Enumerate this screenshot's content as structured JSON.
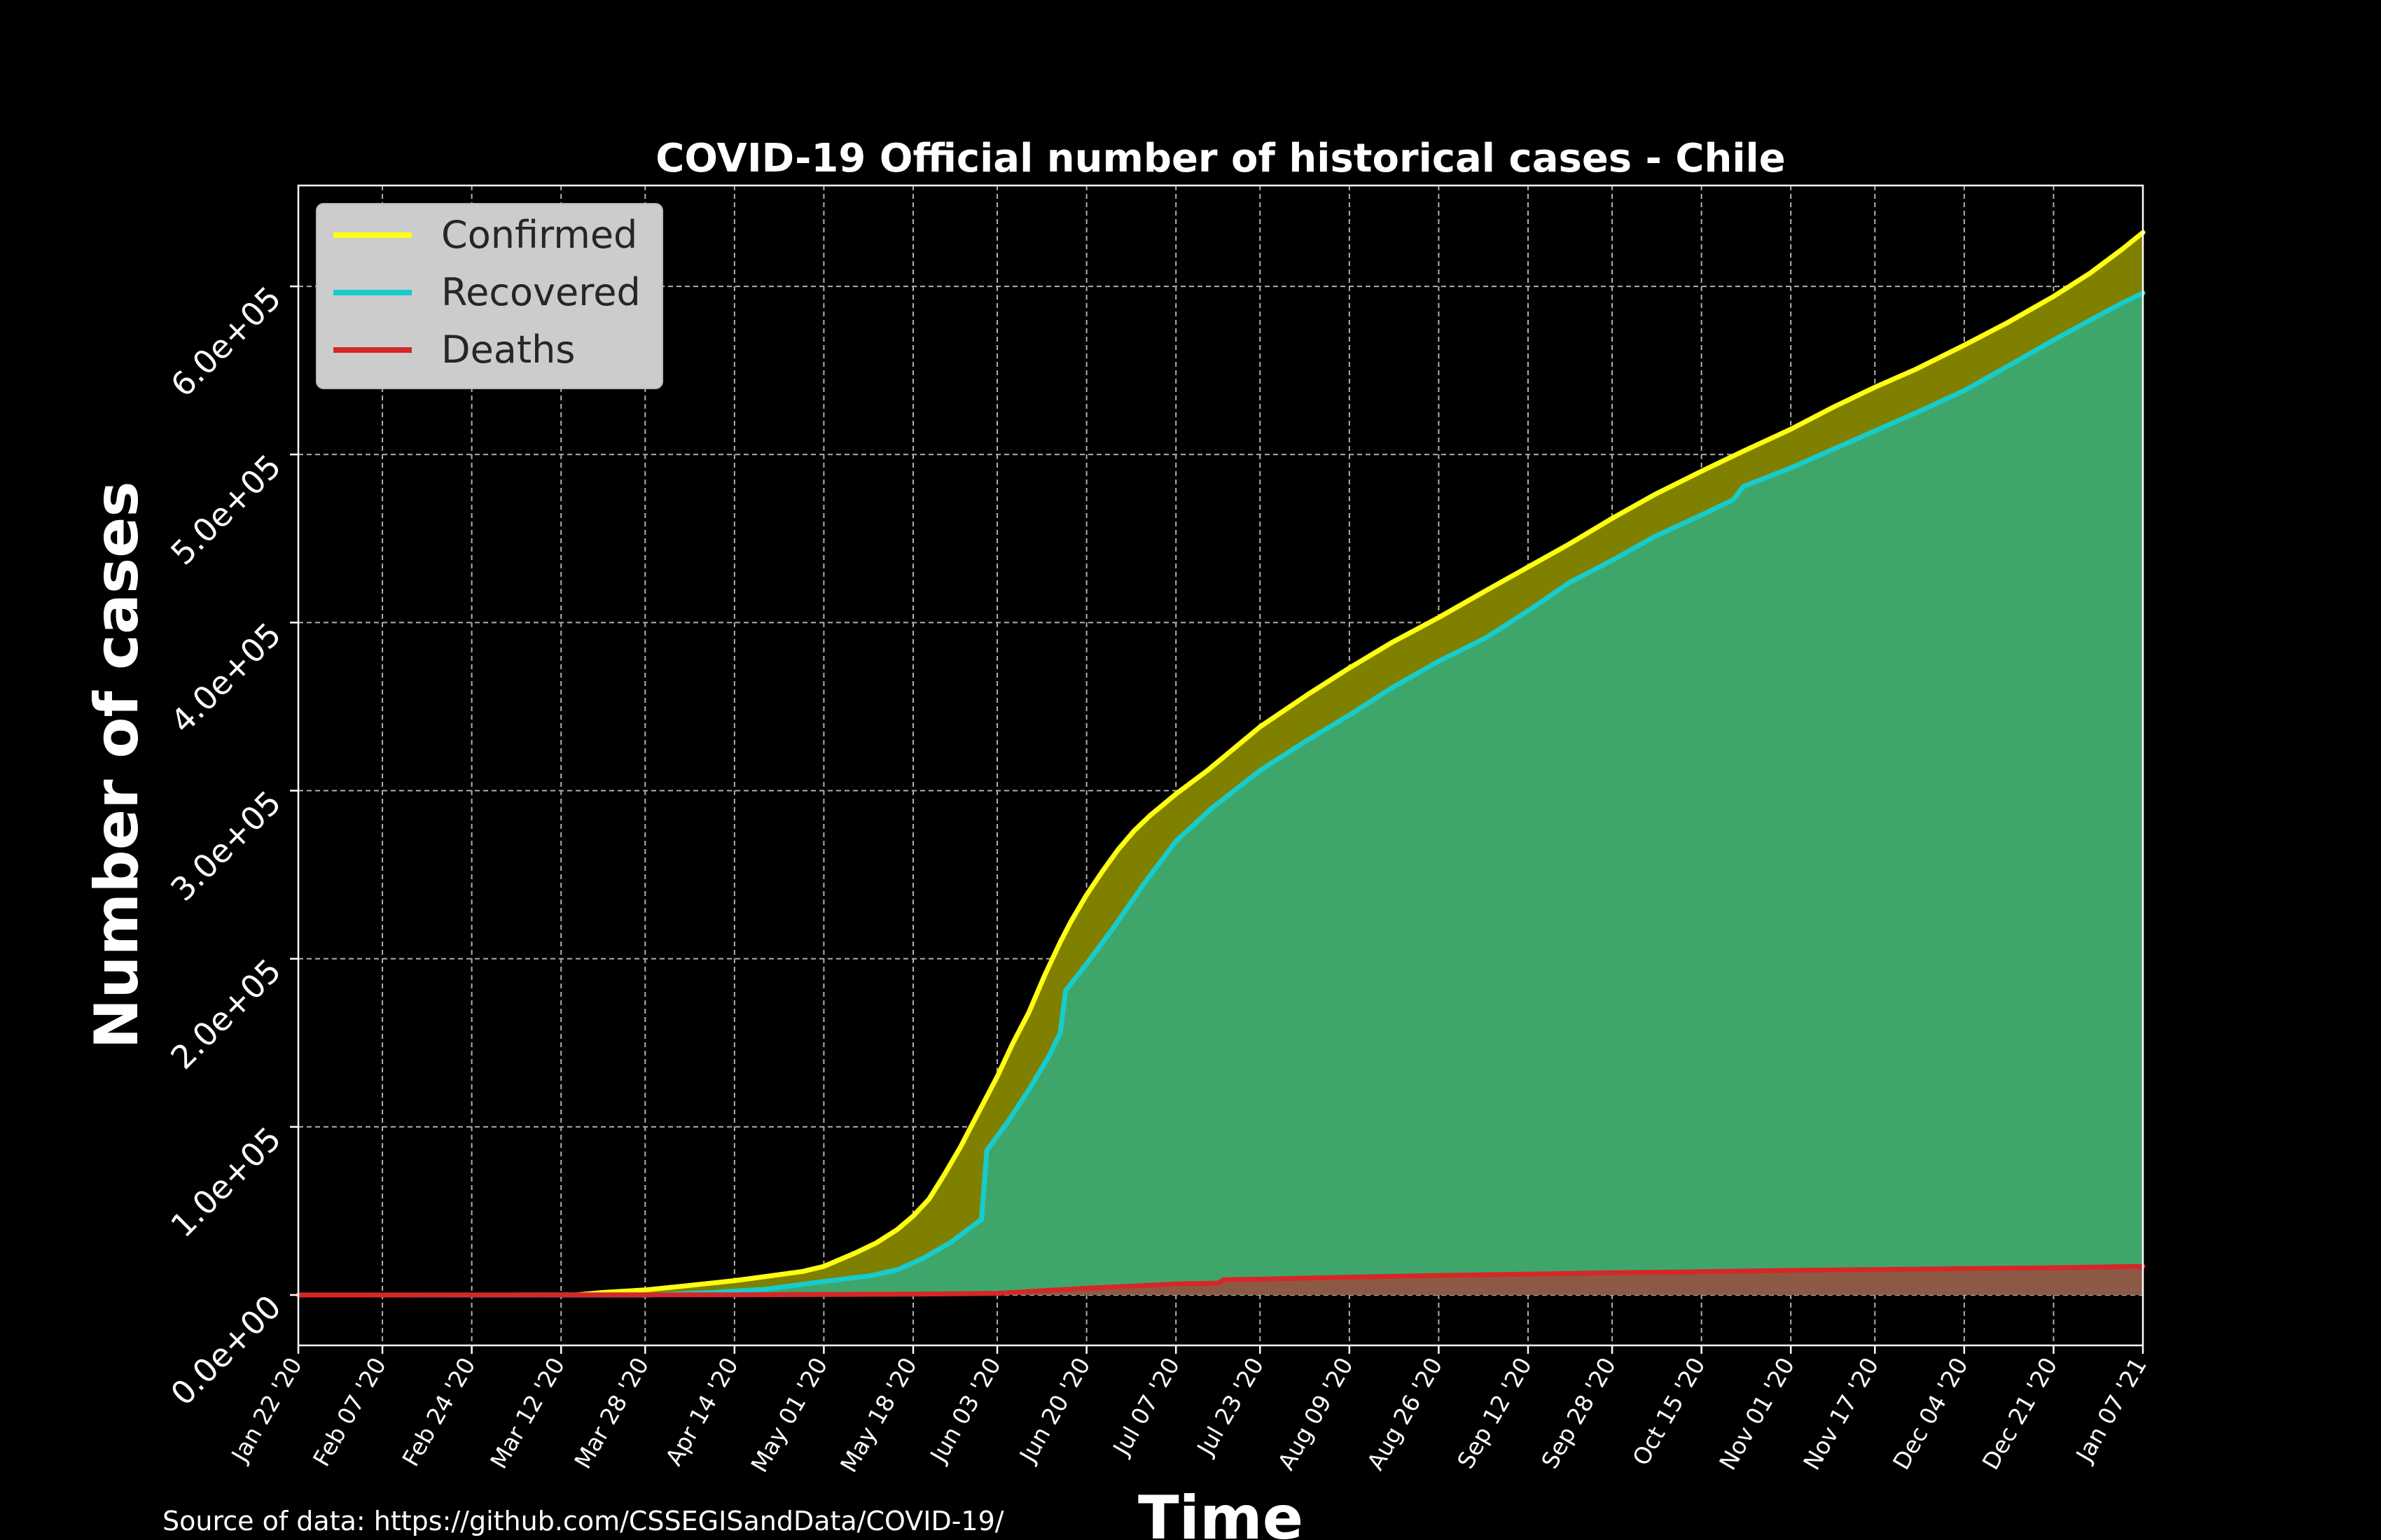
{
  "chart_data": {
    "type": "area",
    "title": "COVID-19 Official number of historical cases - Chile",
    "xlabel": "Time",
    "ylabel": "Number of cases",
    "source": "Source of data: https://github.com/CSSEGISandData/COVID-19/",
    "x_start": "2020-01-22",
    "x_end": "2021-01-07",
    "xticks": [
      {
        "date": "2020-01-22",
        "label": "Jan 22 '20"
      },
      {
        "date": "2020-02-07",
        "label": "Feb 07 '20"
      },
      {
        "date": "2020-02-24",
        "label": "Feb 24 '20"
      },
      {
        "date": "2020-03-12",
        "label": "Mar 12 '20"
      },
      {
        "date": "2020-03-28",
        "label": "Mar 28 '20"
      },
      {
        "date": "2020-04-14",
        "label": "Apr 14 '20"
      },
      {
        "date": "2020-05-01",
        "label": "May 01 '20"
      },
      {
        "date": "2020-05-18",
        "label": "May 18 '20"
      },
      {
        "date": "2020-06-03",
        "label": "Jun 03 '20"
      },
      {
        "date": "2020-06-20",
        "label": "Jun 20 '20"
      },
      {
        "date": "2020-07-07",
        "label": "Jul 07 '20"
      },
      {
        "date": "2020-07-23",
        "label": "Jul 23 '20"
      },
      {
        "date": "2020-08-09",
        "label": "Aug 09 '20"
      },
      {
        "date": "2020-08-26",
        "label": "Aug 26 '20"
      },
      {
        "date": "2020-09-12",
        "label": "Sep 12 '20"
      },
      {
        "date": "2020-09-28",
        "label": "Sep 28 '20"
      },
      {
        "date": "2020-10-15",
        "label": "Oct 15 '20"
      },
      {
        "date": "2020-11-01",
        "label": "Nov 01 '20"
      },
      {
        "date": "2020-11-17",
        "label": "Nov 17 '20"
      },
      {
        "date": "2020-12-04",
        "label": "Dec 04 '20"
      },
      {
        "date": "2020-12-21",
        "label": "Dec 21 '20"
      },
      {
        "date": "2021-01-07",
        "label": "Jan 07 '21"
      }
    ],
    "yticks": [
      {
        "value": 0,
        "label": "0.0e+00"
      },
      {
        "value": 100000,
        "label": "1.0e+05"
      },
      {
        "value": 200000,
        "label": "2.0e+05"
      },
      {
        "value": 300000,
        "label": "3.0e+05"
      },
      {
        "value": 400000,
        "label": "4.0e+05"
      },
      {
        "value": 500000,
        "label": "5.0e+05"
      },
      {
        "value": 600000,
        "label": "6.0e+05"
      }
    ],
    "ylim": [
      -30000,
      660000
    ],
    "grid": true,
    "legend_position": "top-left",
    "series": [
      {
        "name": "Confirmed",
        "color": "#ffff14",
        "fill_color": "#808000",
        "points": [
          [
            "2020-01-22",
            0
          ],
          [
            "2020-03-02",
            0
          ],
          [
            "2020-03-15",
            100
          ],
          [
            "2020-03-20",
            1500
          ],
          [
            "2020-03-28",
            3000
          ],
          [
            "2020-04-05",
            5500
          ],
          [
            "2020-04-14",
            8500
          ],
          [
            "2020-04-20",
            11000
          ],
          [
            "2020-04-27",
            14000
          ],
          [
            "2020-05-01",
            17000
          ],
          [
            "2020-05-07",
            25000
          ],
          [
            "2020-05-11",
            31000
          ],
          [
            "2020-05-15",
            39000
          ],
          [
            "2020-05-18",
            47000
          ],
          [
            "2020-05-21",
            57000
          ],
          [
            "2020-05-24",
            72000
          ],
          [
            "2020-05-27",
            88000
          ],
          [
            "2020-05-29",
            100000
          ],
          [
            "2020-06-01",
            118000
          ],
          [
            "2020-06-03",
            130000
          ],
          [
            "2020-06-06",
            150000
          ],
          [
            "2020-06-09",
            168000
          ],
          [
            "2020-06-12",
            190000
          ],
          [
            "2020-06-15",
            210000
          ],
          [
            "2020-06-17",
            222000
          ],
          [
            "2020-06-20",
            238000
          ],
          [
            "2020-06-23",
            252000
          ],
          [
            "2020-06-26",
            265000
          ],
          [
            "2020-06-29",
            276000
          ],
          [
            "2020-07-02",
            285000
          ],
          [
            "2020-07-07",
            298000
          ],
          [
            "2020-07-13",
            312000
          ],
          [
            "2020-07-18",
            325000
          ],
          [
            "2020-07-23",
            338000
          ],
          [
            "2020-08-01",
            357000
          ],
          [
            "2020-08-09",
            373000
          ],
          [
            "2020-08-17",
            388000
          ],
          [
            "2020-08-26",
            403000
          ],
          [
            "2020-09-04",
            419000
          ],
          [
            "2020-09-12",
            433000
          ],
          [
            "2020-09-20",
            447000
          ],
          [
            "2020-09-28",
            462000
          ],
          [
            "2020-10-06",
            476000
          ],
          [
            "2020-10-15",
            490000
          ],
          [
            "2020-10-23",
            502000
          ],
          [
            "2020-11-01",
            515000
          ],
          [
            "2020-11-09",
            528000
          ],
          [
            "2020-11-17",
            540000
          ],
          [
            "2020-11-25",
            551000
          ],
          [
            "2020-12-04",
            565000
          ],
          [
            "2020-12-12",
            578000
          ],
          [
            "2020-12-21",
            594000
          ],
          [
            "2020-12-28",
            608000
          ],
          [
            "2021-01-03",
            622000
          ],
          [
            "2021-01-07",
            632000
          ]
        ]
      },
      {
        "name": "Recovered",
        "color": "#17cccc",
        "fill_color": "#3fa66b",
        "points": [
          [
            "2020-01-22",
            0
          ],
          [
            "2020-03-28",
            0
          ],
          [
            "2020-04-10",
            1500
          ],
          [
            "2020-04-20",
            3500
          ],
          [
            "2020-05-01",
            8000
          ],
          [
            "2020-05-10",
            11500
          ],
          [
            "2020-05-15",
            15000
          ],
          [
            "2020-05-20",
            22000
          ],
          [
            "2020-05-25",
            31000
          ],
          [
            "2020-05-31",
            45000
          ],
          [
            "2020-06-01",
            86000
          ],
          [
            "2020-06-05",
            103000
          ],
          [
            "2020-06-09",
            122000
          ],
          [
            "2020-06-13",
            143000
          ],
          [
            "2020-06-15",
            156000
          ],
          [
            "2020-06-16",
            181000
          ],
          [
            "2020-06-20",
            197000
          ],
          [
            "2020-06-25",
            218000
          ],
          [
            "2020-07-01",
            245000
          ],
          [
            "2020-07-07",
            270000
          ],
          [
            "2020-07-14",
            290000
          ],
          [
            "2020-07-23",
            312000
          ],
          [
            "2020-08-01",
            330000
          ],
          [
            "2020-08-09",
            345000
          ],
          [
            "2020-08-17",
            361000
          ],
          [
            "2020-08-26",
            377000
          ],
          [
            "2020-09-04",
            391000
          ],
          [
            "2020-09-12",
            407000
          ],
          [
            "2020-09-20",
            424000
          ],
          [
            "2020-09-28",
            437000
          ],
          [
            "2020-10-06",
            451000
          ],
          [
            "2020-10-15",
            464000
          ],
          [
            "2020-10-21",
            473000
          ],
          [
            "2020-10-23",
            481000
          ],
          [
            "2020-11-01",
            492000
          ],
          [
            "2020-11-09",
            503000
          ],
          [
            "2020-11-17",
            514000
          ],
          [
            "2020-11-25",
            525000
          ],
          [
            "2020-12-04",
            538000
          ],
          [
            "2020-12-12",
            552000
          ],
          [
            "2020-12-21",
            568000
          ],
          [
            "2020-12-28",
            580000
          ],
          [
            "2021-01-03",
            590000
          ],
          [
            "2021-01-07",
            596000
          ]
        ]
      },
      {
        "name": "Deaths",
        "color": "#d62728",
        "fill_color": "#8c5a44",
        "points": [
          [
            "2020-01-22",
            0
          ],
          [
            "2020-04-14",
            100
          ],
          [
            "2020-05-01",
            300
          ],
          [
            "2020-05-18",
            500
          ],
          [
            "2020-06-03",
            1000
          ],
          [
            "2020-06-20",
            4000
          ],
          [
            "2020-07-07",
            6500
          ],
          [
            "2020-07-15",
            7000
          ],
          [
            "2020-07-16",
            9000
          ],
          [
            "2020-07-23",
            9400
          ],
          [
            "2020-08-09",
            10600
          ],
          [
            "2020-08-26",
            11600
          ],
          [
            "2020-09-12",
            12400
          ],
          [
            "2020-09-28",
            13200
          ],
          [
            "2020-10-15",
            13800
          ],
          [
            "2020-11-01",
            14600
          ],
          [
            "2020-11-17",
            15100
          ],
          [
            "2020-12-04",
            15700
          ],
          [
            "2020-12-21",
            16200
          ],
          [
            "2021-01-07",
            17000
          ]
        ]
      }
    ]
  }
}
